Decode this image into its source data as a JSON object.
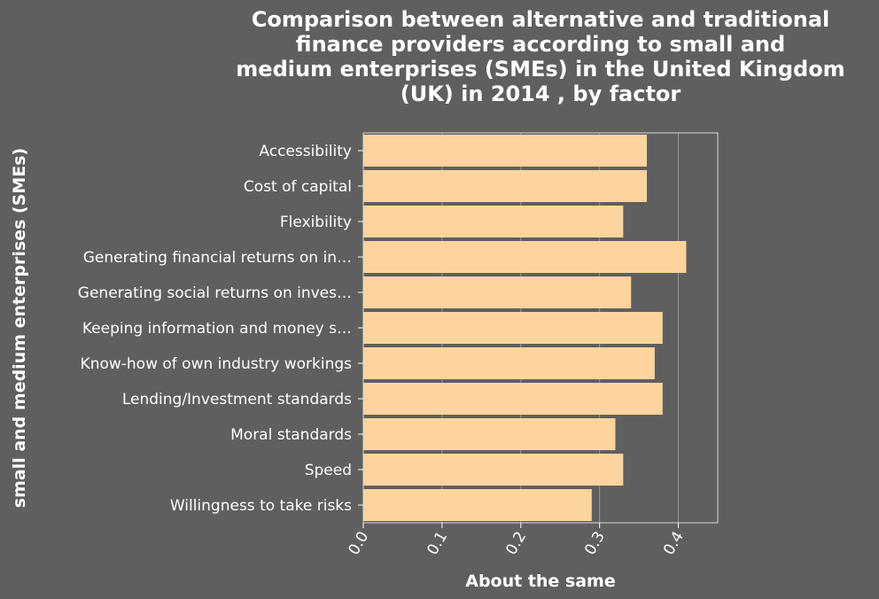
{
  "chart_data": {
    "type": "bar",
    "orientation": "horizontal",
    "title_lines": [
      "Comparison between alternative and traditional",
      "finance providers according to small and",
      "medium enterprises (SMEs) in the United Kingdom",
      "(UK) in 2014 , by factor"
    ],
    "xlabel": "About the same",
    "ylabel": "small and medium enterprises (SMEs)",
    "categories": [
      "Accessibility",
      "Cost of capital",
      "Flexibility",
      "Generating financial returns on in…",
      "Generating social returns on inves…",
      "Keeping information and money s…",
      "Know-how of own industry workings",
      "Lending/Investment standards",
      "Moral standards",
      "Speed",
      "Willingness to take risks"
    ],
    "values": [
      0.36,
      0.36,
      0.33,
      0.41,
      0.34,
      0.38,
      0.37,
      0.38,
      0.32,
      0.33,
      0.29
    ],
    "xlim": [
      0,
      0.45
    ],
    "xticks": [
      0.0,
      0.1,
      0.2,
      0.3,
      0.4
    ],
    "xtick_labels": [
      "0.0",
      "0.1",
      "0.2",
      "0.3",
      "0.4"
    ],
    "grid": true,
    "bar_color": "#fdd49e",
    "background_color": "#5f5f5f",
    "grid_color": "#9a9a9a"
  }
}
